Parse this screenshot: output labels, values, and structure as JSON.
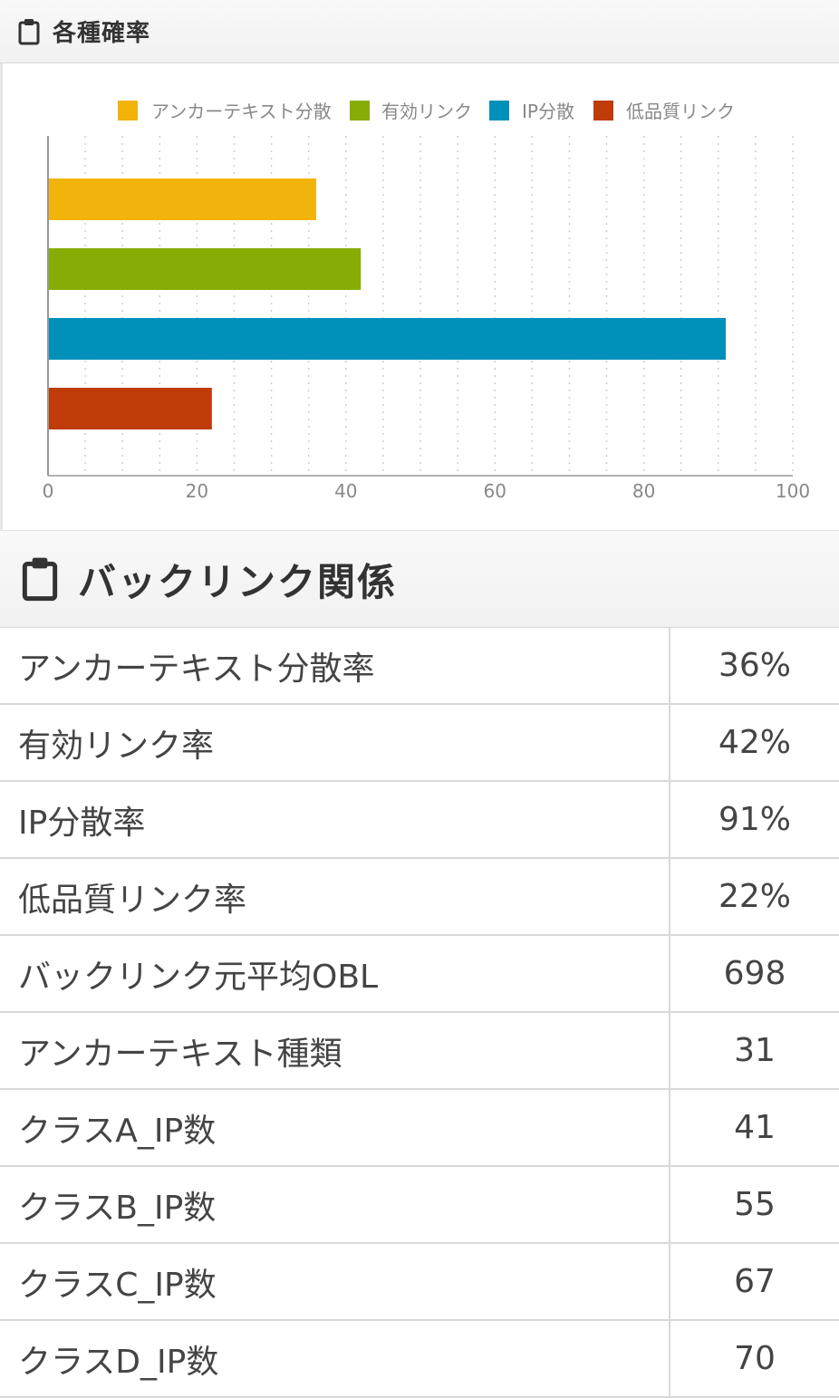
{
  "section1": {
    "title": "各種確率",
    "icon": "clipboard-icon"
  },
  "chart_data": {
    "type": "bar",
    "orientation": "horizontal",
    "series": [
      {
        "name": "アンカーテキスト分散",
        "value": 36,
        "color": "#f2b30a"
      },
      {
        "name": "有効リンク",
        "value": 42,
        "color": "#85ad06"
      },
      {
        "name": "IP分散",
        "value": 91,
        "color": "#0090ba"
      },
      {
        "name": "低品質リンク",
        "value": 22,
        "color": "#bf3b07"
      }
    ],
    "xlim": [
      0,
      100
    ],
    "xticks": [
      "0",
      "20",
      "40",
      "60",
      "80",
      "100"
    ],
    "grid": true,
    "legend": "top"
  },
  "section2": {
    "title": "バックリンク関係",
    "icon": "clipboard-icon"
  },
  "table": {
    "rows": [
      {
        "label": "アンカーテキスト分散率",
        "value": "36%"
      },
      {
        "label": "有効リンク率",
        "value": "42%"
      },
      {
        "label": "IP分散率",
        "value": "91%"
      },
      {
        "label": "低品質リンク率",
        "value": "22%"
      },
      {
        "label": "バックリンク元平均OBL",
        "value": "698"
      },
      {
        "label": "アンカーテキスト種類",
        "value": "31"
      },
      {
        "label": "クラスA_IP数",
        "value": "41"
      },
      {
        "label": "クラスB_IP数",
        "value": "55"
      },
      {
        "label": "クラスC_IP数",
        "value": "67"
      },
      {
        "label": "クラスD_IP数",
        "value": "70"
      }
    ]
  }
}
